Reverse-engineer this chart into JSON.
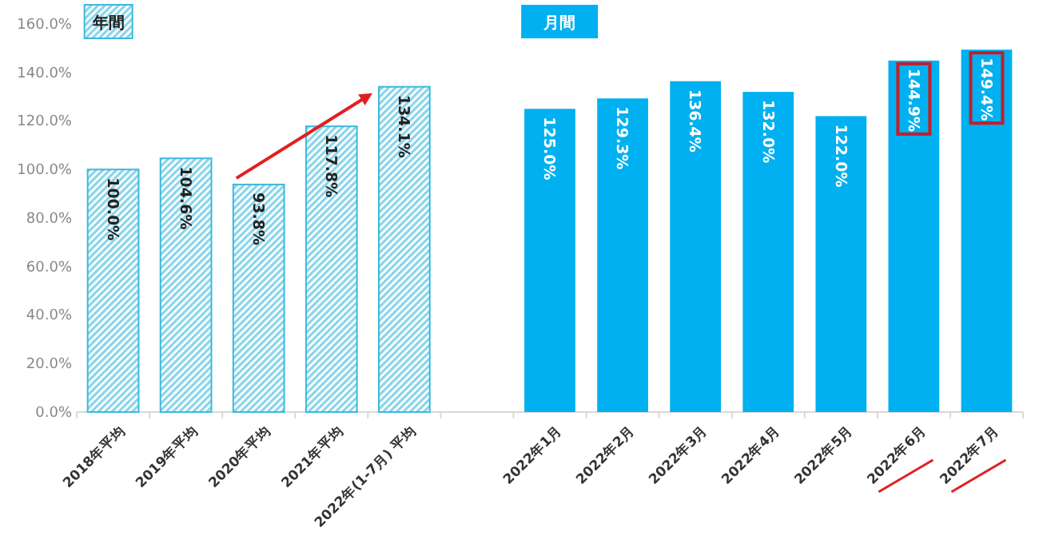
{
  "chart_data": {
    "type": "bar",
    "categories": [
      "2018年平均",
      "2019年平均",
      "2020年平均",
      "2021年平均",
      "2022年(1-7月) 平均",
      null,
      "2022年1月",
      "2022年2月",
      "2022年3月",
      "2022年4月",
      "2022年5月",
      "2022年6月",
      "2022年7月"
    ],
    "series": [
      {
        "name": "年間",
        "color": "#3bb9dc",
        "values": [
          100.0,
          104.6,
          93.8,
          117.8,
          134.1,
          null,
          null,
          null,
          null,
          null,
          null,
          null,
          null
        ],
        "value_labels": [
          "100.0%",
          "104.6%",
          "93.8%",
          "117.8%",
          "134.1%",
          null,
          null,
          null,
          null,
          null,
          null,
          null,
          null
        ]
      },
      {
        "name": "月間",
        "color": "#00b0f0",
        "values": [
          null,
          null,
          null,
          null,
          null,
          null,
          125.0,
          129.3,
          136.4,
          132.0,
          122.0,
          144.9,
          149.4
        ],
        "value_labels": [
          null,
          null,
          null,
          null,
          null,
          null,
          "125.0%",
          "129.3%",
          "136.4%",
          "132.0%",
          "122.0%",
          "144.9%",
          "149.4%"
        ]
      }
    ],
    "ylim": [
      0,
      160
    ],
    "yticks": [
      {
        "value": 0,
        "label": "0.0%"
      },
      {
        "value": 20,
        "label": "20.0%"
      },
      {
        "value": 40,
        "label": "40.0%"
      },
      {
        "value": 60,
        "label": "60.0%"
      },
      {
        "value": 80,
        "label": "80.0%"
      },
      {
        "value": 100,
        "label": "100.0%"
      },
      {
        "value": 120,
        "label": "120.0%"
      },
      {
        "value": 140,
        "label": "140.0%"
      },
      {
        "value": 160,
        "label": "160.0%"
      }
    ],
    "grid": false,
    "legend": "top"
  }
}
